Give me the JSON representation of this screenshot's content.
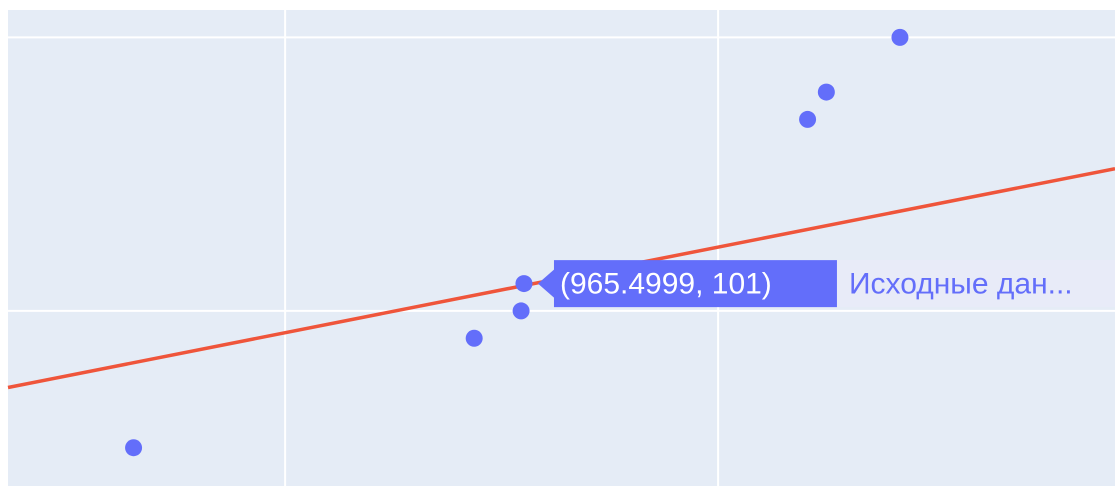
{
  "chart_data": {
    "type": "scatter",
    "xlim": [
      608,
      1375
    ],
    "ylim": [
      93.6,
      111
    ],
    "xgrid": [
      800,
      1100
    ],
    "ygrid": [
      100,
      110
    ],
    "grid": true,
    "series": [
      {
        "name": "Исходные дан...",
        "color": "#636efa",
        "mode": "markers",
        "x": [
          695,
          931,
          963.5,
          965.4999,
          1162,
          1175,
          1226
        ],
        "values": [
          95,
          99,
          100,
          101,
          107,
          108,
          110
        ]
      },
      {
        "color": "#ef553b",
        "mode": "lines",
        "x": [
          608,
          1375
        ],
        "values": [
          97.2,
          105.2
        ]
      }
    ],
    "hover": {
      "series": 0,
      "point": 3,
      "text": "(965.4999, 101)"
    }
  }
}
